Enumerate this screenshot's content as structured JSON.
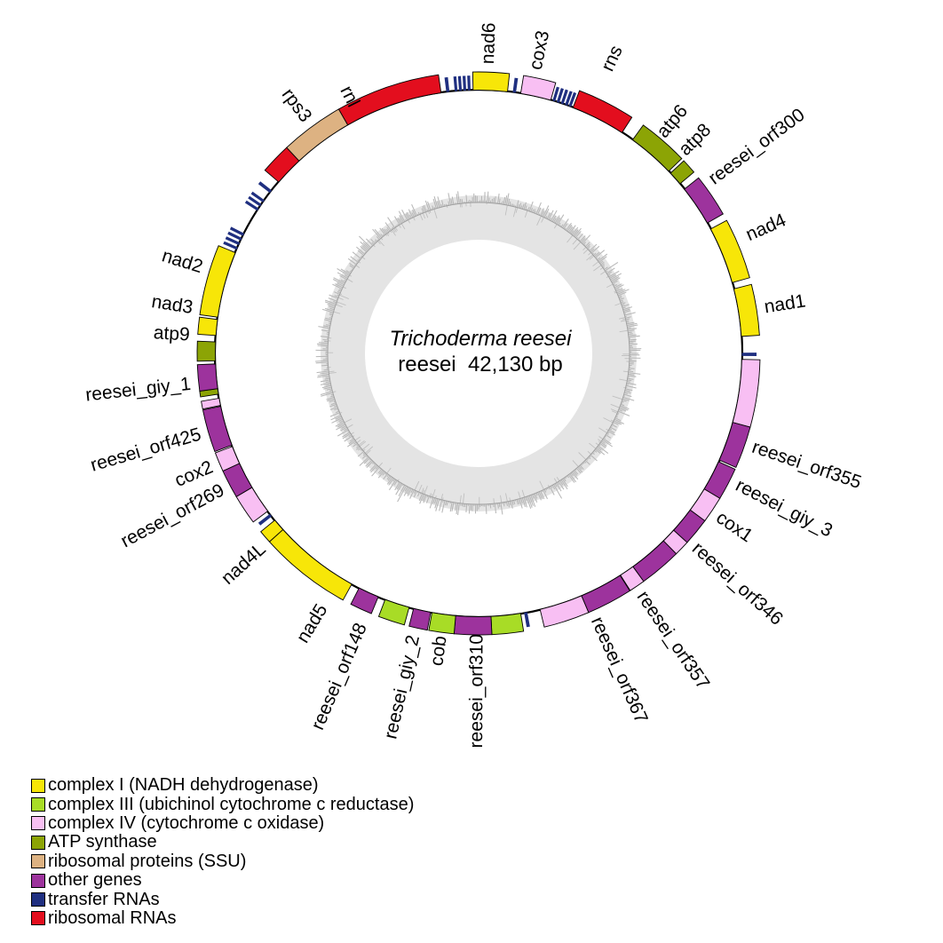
{
  "title": {
    "species": "Trichoderma reesei",
    "size_line": "reesei  42,130 bp"
  },
  "palette": {
    "complex_I": "#F7E608",
    "complex_III": "#A8DC26",
    "complex_IV": "#F8BFF3",
    "ATP_synthase": "#8CA405",
    "ribosomal_proteins": "#DDB282",
    "other_genes": "#9D339D",
    "transfer_RNA": "#1F2F80",
    "ribosomal_RNA": "#E30E1E"
  },
  "legend": [
    {
      "label": "complex I (NADH dehydrogenase)",
      "category": "complex_I"
    },
    {
      "label": "complex III (ubichinol cytochrome c reductase)",
      "category": "complex_III"
    },
    {
      "label": "complex IV (cytochrome c oxidase)",
      "category": "complex_IV"
    },
    {
      "label": "ATP synthase",
      "category": "ATP_synthase"
    },
    {
      "label": "ribosomal proteins (SSU)",
      "category": "ribosomal_proteins"
    },
    {
      "label": "other genes",
      "category": "other_genes"
    },
    {
      "label": "transfer RNAs",
      "category": "transfer_RNA"
    },
    {
      "label": "ribosomal RNAs",
      "category": "ribosomal_RNA"
    }
  ],
  "chart_data": {
    "type": "circular-genome-map",
    "genome": "Trichoderma reesei mitochondrion",
    "size_bp": 42130,
    "segments": [
      {
        "name": "nad6",
        "category": "complex_I",
        "start_deg": 358.8,
        "end_deg": 366.3,
        "label": "nad6",
        "label_deg": 2.0
      },
      {
        "name": "cox3",
        "category": "complex_IV",
        "start_deg": 9.2,
        "end_deg": 15.9,
        "label": "cox3",
        "label_deg": 11.5
      },
      {
        "name": "rns",
        "category": "ribosomal_RNA",
        "start_deg": 21.0,
        "end_deg": 33.0,
        "label": "rns",
        "label_deg": 24.5,
        "label_r": 350
      },
      {
        "name": "atp6",
        "category": "ATP_synthase",
        "start_deg": 35.8,
        "end_deg": 46.2,
        "label": "atp6",
        "label_deg": 40.0,
        "label_r": 320
      },
      {
        "name": "atp8",
        "category": "ATP_synthase",
        "start_deg": 46.8,
        "end_deg": 49.9,
        "label": "atp8",
        "label_deg": 45.5,
        "label_r": 322
      },
      {
        "name": "reesei_orf300",
        "category": "other_genes",
        "start_deg": 51.4,
        "end_deg": 60.3,
        "label": "reesei_orf300",
        "label_deg": 53.5
      },
      {
        "name": "nad4",
        "category": "complex_I",
        "start_deg": 61.8,
        "end_deg": 74.4,
        "label": "nad4",
        "label_deg": 66.5,
        "label_r": 330
      },
      {
        "name": "nad1",
        "category": "complex_I",
        "start_deg": 75.8,
        "end_deg": 86.3,
        "label": "nad1",
        "label_deg": 81.0
      },
      {
        "name": "cox1_exon1",
        "category": "complex_IV",
        "start_deg": 91.3,
        "end_deg": 105.2
      },
      {
        "name": "reesei_orf355",
        "category": "other_genes",
        "start_deg": 105.2,
        "end_deg": 113.9,
        "label": "reesei_orf355",
        "label_deg": 108.9
      },
      {
        "name": "reesei_giy_3",
        "category": "other_genes",
        "start_deg": 114.3,
        "end_deg": 121.0,
        "label": "reesei_giy_3",
        "label_deg": 117.0
      },
      {
        "name": "cox1_exon2",
        "category": "complex_IV",
        "start_deg": 121.0,
        "end_deg": 126.5,
        "label": "cox1",
        "label_deg": 124.3
      },
      {
        "name": "reesei_orf346",
        "category": "other_genes",
        "start_deg": 126.5,
        "end_deg": 132.2,
        "label": "reesei_orf346",
        "label_deg": 131.8
      },
      {
        "name": "cox1_exon3",
        "category": "complex_IV",
        "start_deg": 132.2,
        "end_deg": 135.4
      },
      {
        "name": "reesei_orf357",
        "category": "other_genes",
        "start_deg": 135.4,
        "end_deg": 144.1,
        "label": "reesei_orf357",
        "label_deg": 146.0
      },
      {
        "name": "cox1_exon4",
        "category": "complex_IV",
        "start_deg": 144.1,
        "end_deg": 147.4
      },
      {
        "name": "reesei_orf367",
        "category": "other_genes",
        "start_deg": 147.5,
        "end_deg": 157.0,
        "label": "reesei_orf367",
        "label_deg": 156.2
      },
      {
        "name": "cox1_exon5",
        "category": "complex_IV",
        "start_deg": 157.0,
        "end_deg": 166.5
      },
      {
        "name": "cob_exon1",
        "category": "complex_III",
        "start_deg": 170.8,
        "end_deg": 177.3
      },
      {
        "name": "reesei_orf310",
        "category": "other_genes",
        "start_deg": 177.3,
        "end_deg": 185.0,
        "label": "reesei_orf310",
        "label_deg": 180.2,
        "label_r": 316
      },
      {
        "name": "cob_exon2",
        "category": "complex_III",
        "start_deg": 185.0,
        "end_deg": 190.2,
        "label": "cob",
        "label_deg": 187.5,
        "label_r": 321
      },
      {
        "name": "reesei_giy_2",
        "category": "other_genes",
        "start_deg": 190.5,
        "end_deg": 194.3,
        "label": "reesei_giy_2",
        "label_deg": 192.8
      },
      {
        "name": "cob_exon3",
        "category": "complex_III",
        "start_deg": 195.3,
        "end_deg": 200.8
      },
      {
        "name": "reesei_orf148",
        "category": "other_genes",
        "start_deg": 202.4,
        "end_deg": 207.0,
        "label": "reesei_orf148",
        "label_deg": 203.2,
        "label_r": 332
      },
      {
        "name": "nad5",
        "category": "complex_I",
        "start_deg": 208.8,
        "end_deg": 228.0,
        "label": "nad5",
        "label_deg": 211.5,
        "label_r": 334
      },
      {
        "name": "nad4L",
        "category": "complex_I",
        "start_deg": 228.0,
        "end_deg": 230.7,
        "label": "nad4L",
        "label_deg": 228.0
      },
      {
        "name": "cox2_exon1",
        "category": "complex_IV",
        "start_deg": 233.2,
        "end_deg": 239.4
      },
      {
        "name": "reesei_orf269",
        "category": "other_genes",
        "start_deg": 239.4,
        "end_deg": 245.3,
        "label": "reesei_orf269",
        "label_deg": 241.9
      },
      {
        "name": "cox2_exon2",
        "category": "complex_IV",
        "start_deg": 245.3,
        "end_deg": 249.3,
        "label": "cox2",
        "label_deg": 246.9
      },
      {
        "name": "reesei_orf425",
        "category": "other_genes",
        "start_deg": 249.6,
        "end_deg": 258.4,
        "label": "reesei_orf425",
        "label_deg": 253.7
      },
      {
        "name": "cox2_sliver",
        "category": "complex_IV",
        "start_deg": 258.6,
        "end_deg": 260.2
      },
      {
        "name": "atp_sliver",
        "category": "ATP_synthase",
        "start_deg": 261.1,
        "end_deg": 262.3
      },
      {
        "name": "reesei_giy_1",
        "category": "other_genes",
        "start_deg": 262.3,
        "end_deg": 267.7,
        "label": "reesei_giy_1",
        "label_deg": 263.8
      },
      {
        "name": "atp9",
        "category": "ATP_synthase",
        "start_deg": 268.4,
        "end_deg": 272.5,
        "label": "atp9",
        "label_deg": 273.5
      },
      {
        "name": "nad3",
        "category": "complex_I",
        "start_deg": 273.9,
        "end_deg": 277.4,
        "label": "nad3",
        "label_deg": 278.9
      },
      {
        "name": "nad2",
        "category": "complex_I",
        "start_deg": 277.9,
        "end_deg": 292.5,
        "label": "nad2",
        "label_deg": 287.1
      },
      {
        "name": "rnl_part1",
        "category": "ribosomal_RNA",
        "start_deg": 310.6,
        "end_deg": 317.0
      },
      {
        "name": "rps3",
        "category": "ribosomal_proteins",
        "start_deg": 317.0,
        "end_deg": 330.2,
        "label": "rps3",
        "label_deg": 323.6
      },
      {
        "name": "rnl_part2",
        "category": "ribosomal_RNA",
        "start_deg": 330.2,
        "end_deg": 351.8,
        "label": "rnl",
        "label_deg": 333.2,
        "label_r": 312
      }
    ],
    "trna_ticks": [
      {
        "deg": 7.8,
        "w": 0.7
      },
      {
        "deg": 16.6,
        "w": 0.6
      },
      {
        "deg": 17.55,
        "w": 0.6
      },
      {
        "deg": 18.5,
        "w": 0.6
      },
      {
        "deg": 19.45,
        "w": 0.6
      },
      {
        "deg": 20.3,
        "w": 0.6
      },
      {
        "deg": 90.2,
        "w": 0.7
      },
      {
        "deg": 169.7,
        "w": 0.7
      },
      {
        "deg": 232.1,
        "w": 0.7
      },
      {
        "deg": 293.5,
        "w": 0.6
      },
      {
        "deg": 294.6,
        "w": 0.6
      },
      {
        "deg": 295.7,
        "w": 0.6
      },
      {
        "deg": 296.8,
        "w": 0.6
      },
      {
        "deg": 303.1,
        "w": 0.6
      },
      {
        "deg": 304.2,
        "w": 0.6
      },
      {
        "deg": 305.3,
        "w": 0.6
      },
      {
        "deg": 307.9,
        "w": 0.7
      },
      {
        "deg": 353.3,
        "w": 0.7
      },
      {
        "deg": 355.1,
        "w": 0.6
      },
      {
        "deg": 356.05,
        "w": 0.6
      },
      {
        "deg": 357.0,
        "w": 0.6
      },
      {
        "deg": 357.95,
        "w": 0.6
      }
    ]
  }
}
